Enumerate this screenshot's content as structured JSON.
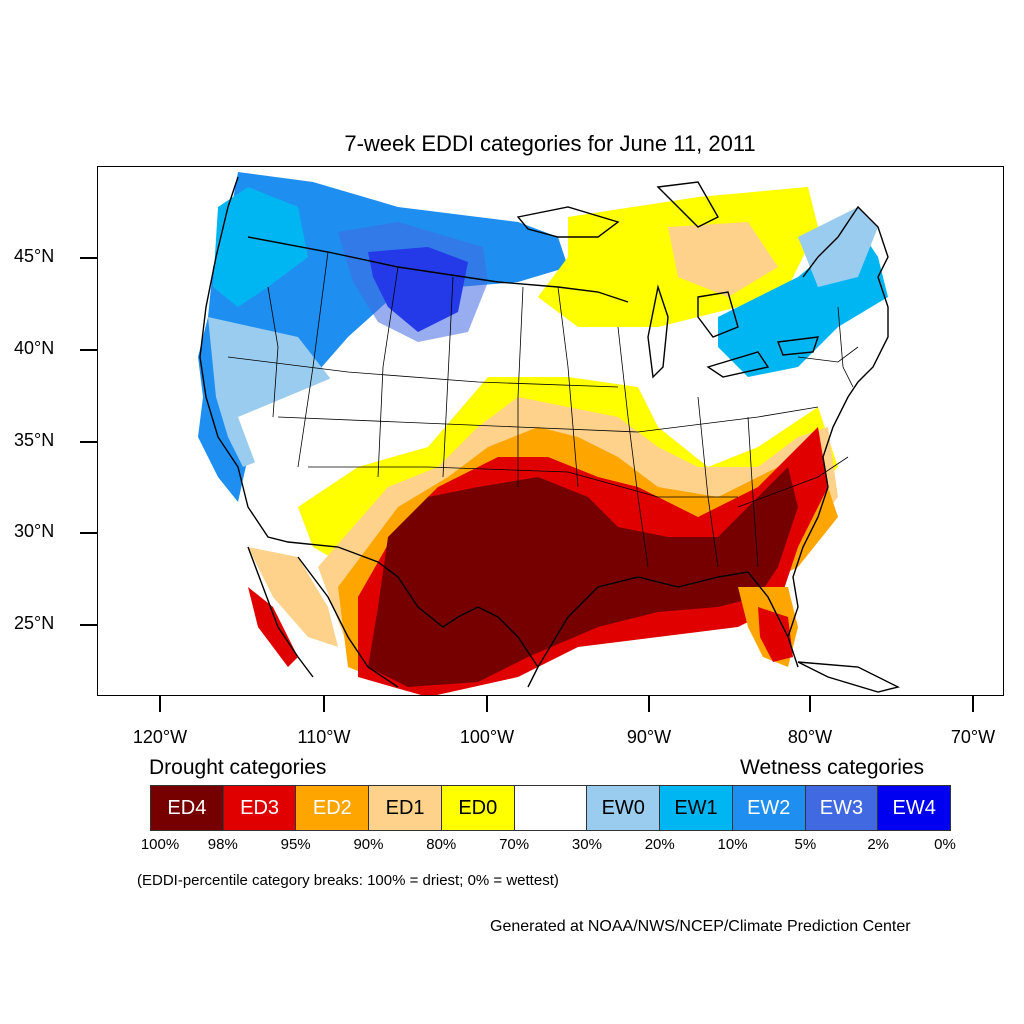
{
  "title": "7-week EDDI categories for June 11, 2011",
  "lat_labels": [
    "45°N",
    "40°N",
    "35°N",
    "30°N",
    "25°N"
  ],
  "lon_labels": [
    "120°W",
    "110°W",
    "100°W",
    "90°W",
    "80°W",
    "70°W"
  ],
  "drought_heading": "Drought categories",
  "wetness_heading": "Wetness categories",
  "categories": [
    {
      "label": "ED4",
      "color": "#760000",
      "text_color": "#ffffff"
    },
    {
      "label": "ED3",
      "color": "#e00000",
      "text_color": "#ffffff"
    },
    {
      "label": "ED2",
      "color": "#ffa500",
      "text_color": "#ffffff"
    },
    {
      "label": "ED1",
      "color": "#fed28a",
      "text_color": "#000000"
    },
    {
      "label": "ED0",
      "color": "#ffff00",
      "text_color": "#000000"
    },
    {
      "label": "",
      "color": "#ffffff",
      "text_color": "#000000"
    },
    {
      "label": "EW0",
      "color": "#99ccee",
      "text_color": "#000000"
    },
    {
      "label": "EW1",
      "color": "#00b6f2",
      "text_color": "#000000"
    },
    {
      "label": "EW2",
      "color": "#1e8ff0",
      "text_color": "#ffffff"
    },
    {
      "label": "EW3",
      "color": "#4169e1",
      "text_color": "#ffffff"
    },
    {
      "label": "EW4",
      "color": "#0000f0",
      "text_color": "#ffffff"
    }
  ],
  "percent_breaks": [
    "100%",
    "98%",
    "95%",
    "90%",
    "80%",
    "70%",
    "30%",
    "20%",
    "10%",
    "5%",
    "2%",
    "0%"
  ],
  "note": "(EDDI-percentile category breaks: 100% = driest; 0% = wettest)",
  "credit": "Generated at NOAA/NWS/NCEP/Climate Prediction Center"
}
